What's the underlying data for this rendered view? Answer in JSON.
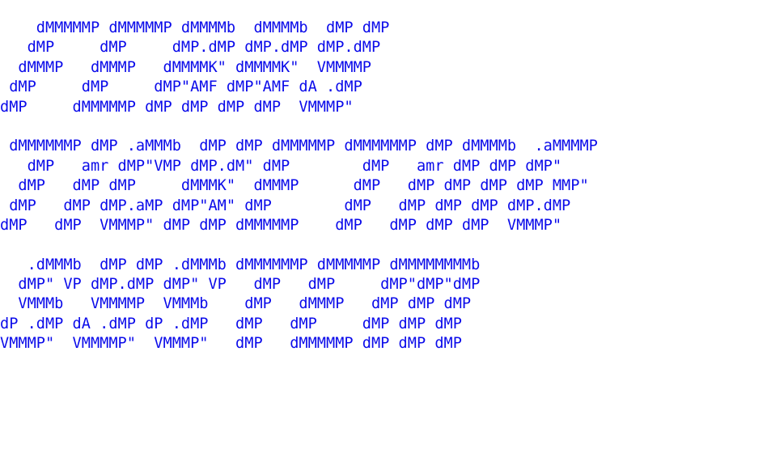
{
  "ascii_art": {
    "color": "#0b0bea",
    "lines": [
      "    dMMMMMP dMMMMMP dMMMMb  dMMMMb  dMP dMP",
      "   dMP     dMP     dMP.dMP dMP.dMP dMP.dMP",
      "  dMMMP   dMMMP   dMMMMK\" dMMMMK\"  VMMMMP",
      " dMP     dMP     dMP\"AMF dMP\"AMF dA .dMP",
      "dMP     dMMMMMP dMP dMP dMP dMP  VMMMP\"",
      "",
      " dMMMMMMP dMP .aMMMb  dMP dMP dMMMMMP dMMMMMMP dMP dMMMMb  .aMMMMP",
      "   dMP   amr dMP\"VMP dMP.dM\" dMP        dMP   amr dMP dMP dMP\"",
      "  dMP   dMP dMP     dMMMK\"  dMMMP      dMP   dMP dMP dMP dMP MMP\"",
      " dMP   dMP dMP.aMP dMP\"AM\" dMP        dMP   dMP dMP dMP dMP.dMP",
      "dMP   dMP  VMMMP\" dMP dMP dMMMMMP    dMP   dMP dMP dMP  VMMMP\"",
      "",
      "   .dMMMb  dMP dMP .dMMMb dMMMMMMP dMMMMMP dMMMMMMMMb",
      "  dMP\" VP dMP.dMP dMP\" VP   dMP   dMP     dMP\"dMP\"dMP",
      "  VMMMb   VMMMMP  VMMMb    dMP   dMMMP   dMP dMP dMP",
      "dP .dMP dA .dMP dP .dMP   dMP   dMP     dMP dMP dMP",
      "VMMMP\"  VMMMMP\"  VMMMP\"   dMP   dMMMMMP dMP dMP dMP"
    ]
  }
}
